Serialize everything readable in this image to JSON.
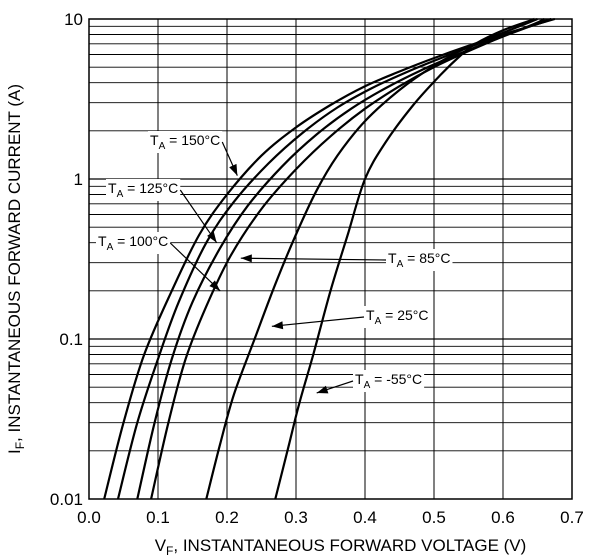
{
  "chart_data": {
    "type": "line",
    "xlabel": "V_F, INSTANTANEOUS FORWARD VOLTAGE (V)",
    "ylabel": "I_F, INSTANTANEOUS FORWARD CURRENT (A)",
    "xlim": [
      0,
      0.7
    ],
    "ylim": [
      0.01,
      10
    ],
    "x_scale": "linear",
    "y_scale": "log",
    "grid": true,
    "x_ticks": [
      "0.0",
      "0.1",
      "0.2",
      "0.3",
      "0.4",
      "0.5",
      "0.6",
      "0.7"
    ],
    "y_ticks": [
      "0.01",
      "0.1",
      "1",
      "10"
    ],
    "series": [
      {
        "name": "T_A = 150°C",
        "points": [
          [
            0.022,
            0.01
          ],
          [
            0.05,
            0.03
          ],
          [
            0.08,
            0.08
          ],
          [
            0.12,
            0.2
          ],
          [
            0.16,
            0.45
          ],
          [
            0.2,
            0.8
          ],
          [
            0.25,
            1.4
          ],
          [
            0.3,
            2.1
          ],
          [
            0.35,
            2.9
          ],
          [
            0.4,
            3.8
          ],
          [
            0.45,
            4.7
          ],
          [
            0.5,
            5.7
          ],
          [
            0.55,
            6.8
          ],
          [
            0.6,
            8.0
          ],
          [
            0.65,
            9.3
          ],
          [
            0.675,
            10
          ]
        ]
      },
      {
        "name": "T_A = 125°C",
        "points": [
          [
            0.042,
            0.01
          ],
          [
            0.07,
            0.03
          ],
          [
            0.1,
            0.075
          ],
          [
            0.13,
            0.17
          ],
          [
            0.17,
            0.4
          ],
          [
            0.21,
            0.72
          ],
          [
            0.26,
            1.25
          ],
          [
            0.31,
            1.95
          ],
          [
            0.36,
            2.8
          ],
          [
            0.41,
            3.7
          ],
          [
            0.46,
            4.65
          ],
          [
            0.51,
            5.7
          ],
          [
            0.56,
            6.9
          ],
          [
            0.61,
            8.2
          ],
          [
            0.66,
            9.6
          ],
          [
            0.67,
            10
          ]
        ]
      },
      {
        "name": "T_A = 100°C",
        "points": [
          [
            0.07,
            0.01
          ],
          [
            0.095,
            0.03
          ],
          [
            0.12,
            0.075
          ],
          [
            0.15,
            0.17
          ],
          [
            0.19,
            0.37
          ],
          [
            0.23,
            0.68
          ],
          [
            0.28,
            1.2
          ],
          [
            0.33,
            1.9
          ],
          [
            0.38,
            2.75
          ],
          [
            0.43,
            3.7
          ],
          [
            0.48,
            4.75
          ],
          [
            0.53,
            5.9
          ],
          [
            0.58,
            7.2
          ],
          [
            0.63,
            8.7
          ],
          [
            0.66,
            9.7
          ],
          [
            0.67,
            10
          ]
        ]
      },
      {
        "name": "T_A = 85°C",
        "points": [
          [
            0.09,
            0.01
          ],
          [
            0.115,
            0.03
          ],
          [
            0.14,
            0.075
          ],
          [
            0.17,
            0.16
          ],
          [
            0.205,
            0.33
          ],
          [
            0.25,
            0.65
          ],
          [
            0.3,
            1.15
          ],
          [
            0.35,
            1.85
          ],
          [
            0.4,
            2.75
          ],
          [
            0.45,
            3.8
          ],
          [
            0.5,
            5.0
          ],
          [
            0.55,
            6.3
          ],
          [
            0.6,
            7.8
          ],
          [
            0.645,
            9.3
          ],
          [
            0.66,
            10
          ]
        ]
      },
      {
        "name": "T_A = 25°C",
        "points": [
          [
            0.17,
            0.01
          ],
          [
            0.19,
            0.022
          ],
          [
            0.21,
            0.045
          ],
          [
            0.24,
            0.1
          ],
          [
            0.27,
            0.22
          ],
          [
            0.3,
            0.45
          ],
          [
            0.33,
            0.85
          ],
          [
            0.36,
            1.4
          ],
          [
            0.4,
            2.3
          ],
          [
            0.45,
            3.6
          ],
          [
            0.5,
            5.1
          ],
          [
            0.55,
            6.7
          ],
          [
            0.6,
            8.2
          ],
          [
            0.64,
            9.6
          ],
          [
            0.65,
            10
          ]
        ]
      },
      {
        "name": "T_A = -55°C",
        "points": [
          [
            0.27,
            0.01
          ],
          [
            0.29,
            0.022
          ],
          [
            0.305,
            0.04
          ],
          [
            0.325,
            0.08
          ],
          [
            0.35,
            0.2
          ],
          [
            0.375,
            0.45
          ],
          [
            0.4,
            1.0
          ],
          [
            0.43,
            1.7
          ],
          [
            0.47,
            2.9
          ],
          [
            0.51,
            4.5
          ],
          [
            0.54,
            6.0
          ],
          [
            0.56,
            7.0
          ],
          [
            0.6,
            8.5
          ],
          [
            0.64,
            9.8
          ],
          [
            0.645,
            10
          ]
        ]
      }
    ],
    "annotations": [
      {
        "text": "T_A = 150°C",
        "series": "T_A = 150°C",
        "target": [
          0.215,
          1.05
        ]
      },
      {
        "text": "T_A = 125°C",
        "series": "T_A = 125°C",
        "target": [
          0.185,
          0.4
        ]
      },
      {
        "text": "T_A = 100°C",
        "series": "T_A = 100°C",
        "target": [
          0.19,
          0.2
        ]
      },
      {
        "text": "T_A = 85°C",
        "series": "T_A = 85°C",
        "target": [
          0.22,
          0.32
        ]
      },
      {
        "text": "T_A = 25°C",
        "series": "T_A = 25°C",
        "target": [
          0.265,
          0.12
        ]
      },
      {
        "text": "T_A = -55°C",
        "series": "T_A = -55°C",
        "target": [
          0.33,
          0.046
        ]
      }
    ]
  }
}
